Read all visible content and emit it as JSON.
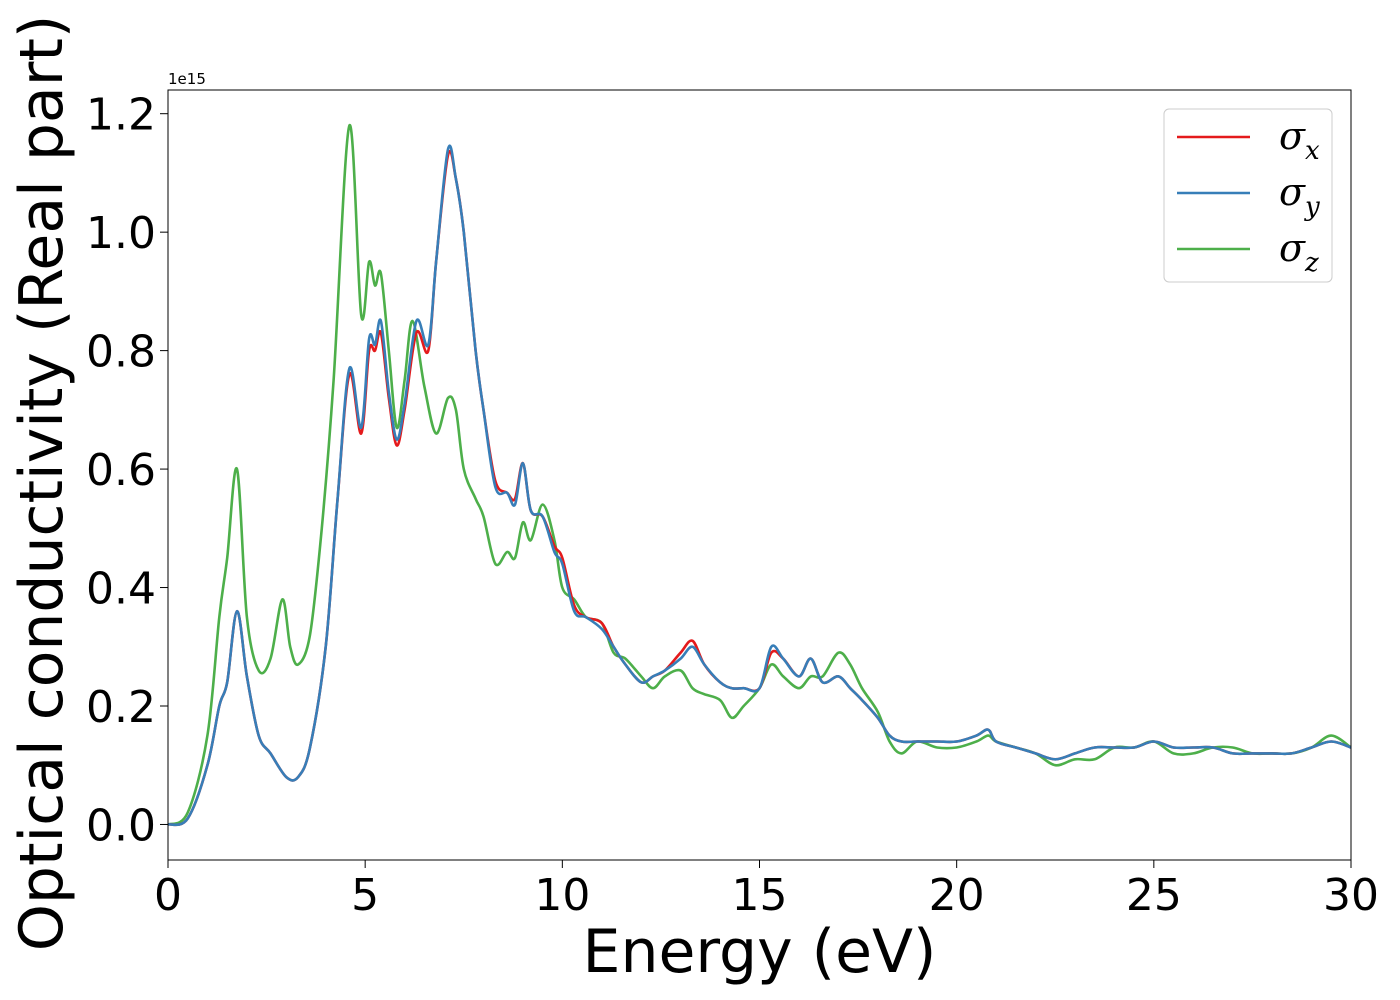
{
  "chart_data": {
    "type": "line",
    "title": "",
    "xlabel": "Energy (eV)",
    "ylabel": "Optical conductivity (Real part)",
    "y_offset_label": "1e15",
    "xlim": [
      0,
      30
    ],
    "ylim": [
      -0.06,
      1.24
    ],
    "xticks": [
      0,
      5,
      10,
      15,
      20,
      25,
      30
    ],
    "xtick_labels": [
      "0",
      "5",
      "10",
      "15",
      "20",
      "25",
      "30"
    ],
    "yticks": [
      0.0,
      0.2,
      0.4,
      0.6,
      0.8,
      1.0,
      1.2
    ],
    "ytick_labels": [
      "0.0",
      "0.2",
      "0.4",
      "0.6",
      "0.8",
      "1.0",
      "1.2"
    ],
    "grid": false,
    "legend_position": "top-right",
    "series": [
      {
        "name": "σx",
        "legend_symbol": "σ",
        "legend_subscript": "x",
        "color": "#e41a1c",
        "x": [
          0,
          0.5,
          1.0,
          1.3,
          1.5,
          1.75,
          2.0,
          2.3,
          2.6,
          3.0,
          3.3,
          3.6,
          4.0,
          4.3,
          4.6,
          4.9,
          5.1,
          5.25,
          5.4,
          5.6,
          5.8,
          6.0,
          6.3,
          6.6,
          6.8,
          7.1,
          7.3,
          7.5,
          7.8,
          8.0,
          8.3,
          8.6,
          8.8,
          9.0,
          9.2,
          9.5,
          9.8,
          10.0,
          10.3,
          10.6,
          11.0,
          11.3,
          11.6,
          12.0,
          12.3,
          12.6,
          13.0,
          13.3,
          13.6,
          14.0,
          14.3,
          14.6,
          15.0,
          15.3,
          15.6,
          16.0,
          16.3,
          16.6,
          17.0,
          17.3,
          17.6,
          18.0,
          18.3,
          18.6,
          19.0,
          19.5,
          20.0,
          20.5,
          20.8,
          21.0,
          21.5,
          22.0,
          22.5,
          23.0,
          23.5,
          24.0,
          24.5,
          25.0,
          25.5,
          26.0,
          26.5,
          27.0,
          27.5,
          28.0,
          28.5,
          29.0,
          29.5,
          30.0
        ],
        "values": [
          0.0,
          0.01,
          0.1,
          0.2,
          0.24,
          0.36,
          0.25,
          0.15,
          0.12,
          0.08,
          0.08,
          0.13,
          0.3,
          0.55,
          0.76,
          0.66,
          0.8,
          0.8,
          0.83,
          0.72,
          0.64,
          0.7,
          0.83,
          0.8,
          0.95,
          1.13,
          1.09,
          1.0,
          0.8,
          0.7,
          0.58,
          0.56,
          0.55,
          0.61,
          0.53,
          0.52,
          0.47,
          0.45,
          0.37,
          0.35,
          0.34,
          0.3,
          0.27,
          0.24,
          0.25,
          0.26,
          0.29,
          0.31,
          0.27,
          0.24,
          0.23,
          0.23,
          0.23,
          0.29,
          0.28,
          0.25,
          0.28,
          0.24,
          0.25,
          0.23,
          0.21,
          0.18,
          0.15,
          0.14,
          0.14,
          0.14,
          0.14,
          0.15,
          0.16,
          0.14,
          0.13,
          0.12,
          0.11,
          0.12,
          0.13,
          0.13,
          0.13,
          0.14,
          0.13,
          0.13,
          0.13,
          0.12,
          0.12,
          0.12,
          0.12,
          0.13,
          0.14,
          0.13
        ]
      },
      {
        "name": "σy",
        "legend_symbol": "σ",
        "legend_subscript": "y",
        "color": "#377eb8",
        "x": [
          0,
          0.5,
          1.0,
          1.3,
          1.5,
          1.75,
          2.0,
          2.3,
          2.6,
          3.0,
          3.3,
          3.6,
          4.0,
          4.3,
          4.6,
          4.9,
          5.1,
          5.25,
          5.4,
          5.6,
          5.8,
          6.0,
          6.3,
          6.6,
          6.8,
          7.1,
          7.3,
          7.5,
          7.8,
          8.0,
          8.3,
          8.6,
          8.8,
          9.0,
          9.2,
          9.5,
          9.8,
          10.0,
          10.3,
          10.6,
          11.0,
          11.3,
          11.6,
          12.0,
          12.3,
          12.6,
          13.0,
          13.3,
          13.6,
          14.0,
          14.3,
          14.6,
          15.0,
          15.3,
          15.6,
          16.0,
          16.3,
          16.6,
          17.0,
          17.3,
          17.6,
          18.0,
          18.3,
          18.6,
          19.0,
          19.5,
          20.0,
          20.5,
          20.8,
          21.0,
          21.5,
          22.0,
          22.5,
          23.0,
          23.5,
          24.0,
          24.5,
          25.0,
          25.5,
          26.0,
          26.5,
          27.0,
          27.5,
          28.0,
          28.5,
          29.0,
          29.5,
          30.0
        ],
        "values": [
          0.0,
          0.01,
          0.1,
          0.2,
          0.24,
          0.36,
          0.25,
          0.15,
          0.12,
          0.08,
          0.08,
          0.13,
          0.3,
          0.55,
          0.77,
          0.67,
          0.82,
          0.81,
          0.85,
          0.73,
          0.65,
          0.71,
          0.85,
          0.81,
          0.95,
          1.14,
          1.09,
          1.0,
          0.8,
          0.7,
          0.57,
          0.56,
          0.54,
          0.61,
          0.53,
          0.52,
          0.46,
          0.44,
          0.36,
          0.35,
          0.33,
          0.3,
          0.27,
          0.24,
          0.25,
          0.26,
          0.28,
          0.3,
          0.27,
          0.24,
          0.23,
          0.23,
          0.23,
          0.3,
          0.28,
          0.25,
          0.28,
          0.24,
          0.25,
          0.23,
          0.21,
          0.18,
          0.15,
          0.14,
          0.14,
          0.14,
          0.14,
          0.15,
          0.16,
          0.14,
          0.13,
          0.12,
          0.11,
          0.12,
          0.13,
          0.13,
          0.13,
          0.14,
          0.13,
          0.13,
          0.13,
          0.12,
          0.12,
          0.12,
          0.12,
          0.13,
          0.14,
          0.13
        ]
      },
      {
        "name": "σz",
        "legend_symbol": "σ",
        "legend_subscript": "z",
        "color": "#4daf4a",
        "x": [
          0,
          0.5,
          1.0,
          1.3,
          1.5,
          1.75,
          2.0,
          2.3,
          2.6,
          2.9,
          3.1,
          3.3,
          3.6,
          3.9,
          4.2,
          4.6,
          4.9,
          5.1,
          5.25,
          5.4,
          5.6,
          5.8,
          6.0,
          6.2,
          6.5,
          6.8,
          7.1,
          7.3,
          7.5,
          7.8,
          8.0,
          8.3,
          8.6,
          8.8,
          9.0,
          9.2,
          9.5,
          9.8,
          10.0,
          10.3,
          10.6,
          11.0,
          11.3,
          11.6,
          12.0,
          12.3,
          12.6,
          13.0,
          13.3,
          13.6,
          14.0,
          14.3,
          14.6,
          15.0,
          15.3,
          15.6,
          16.0,
          16.3,
          16.6,
          17.0,
          17.3,
          17.6,
          18.0,
          18.3,
          18.6,
          19.0,
          19.5,
          20.0,
          20.5,
          20.8,
          21.0,
          21.5,
          22.0,
          22.5,
          23.0,
          23.5,
          24.0,
          24.5,
          25.0,
          25.5,
          26.0,
          26.5,
          27.0,
          27.5,
          28.0,
          28.5,
          29.0,
          29.5,
          30.0
        ],
        "values": [
          0.0,
          0.02,
          0.15,
          0.35,
          0.45,
          0.6,
          0.35,
          0.26,
          0.28,
          0.38,
          0.3,
          0.27,
          0.32,
          0.5,
          0.75,
          1.18,
          0.86,
          0.95,
          0.91,
          0.93,
          0.8,
          0.67,
          0.75,
          0.85,
          0.74,
          0.66,
          0.72,
          0.7,
          0.6,
          0.55,
          0.52,
          0.44,
          0.46,
          0.45,
          0.51,
          0.48,
          0.54,
          0.48,
          0.4,
          0.38,
          0.35,
          0.34,
          0.29,
          0.28,
          0.25,
          0.23,
          0.25,
          0.26,
          0.23,
          0.22,
          0.21,
          0.18,
          0.2,
          0.23,
          0.27,
          0.25,
          0.23,
          0.25,
          0.25,
          0.29,
          0.27,
          0.23,
          0.19,
          0.14,
          0.12,
          0.14,
          0.13,
          0.13,
          0.14,
          0.15,
          0.14,
          0.13,
          0.12,
          0.1,
          0.11,
          0.11,
          0.13,
          0.13,
          0.14,
          0.12,
          0.12,
          0.13,
          0.13,
          0.12,
          0.12,
          0.12,
          0.13,
          0.15,
          0.13
        ]
      }
    ]
  }
}
